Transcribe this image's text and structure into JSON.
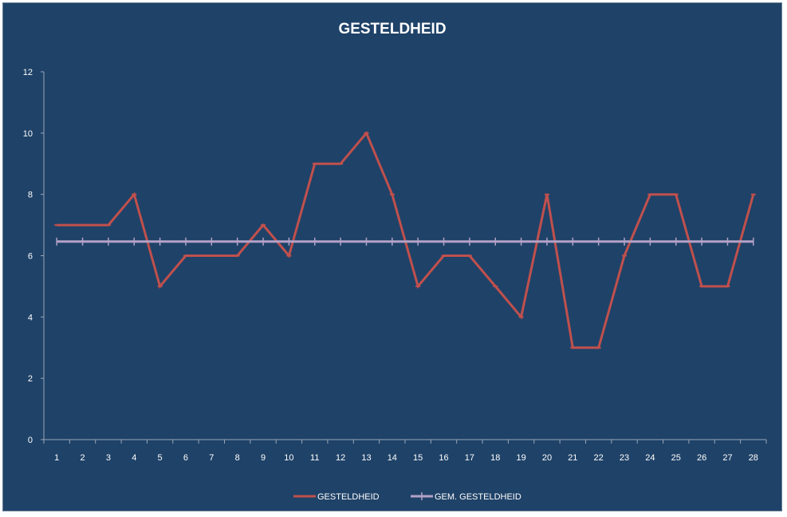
{
  "chart_data": {
    "type": "line",
    "title": "GESTELDHEID",
    "xlabel": "",
    "ylabel": "",
    "categories": [
      "1",
      "2",
      "3",
      "4",
      "5",
      "6",
      "7",
      "8",
      "9",
      "10",
      "11",
      "12",
      "13",
      "14",
      "15",
      "16",
      "17",
      "18",
      "19",
      "20",
      "21",
      "22",
      "23",
      "24",
      "25",
      "26",
      "27",
      "28"
    ],
    "ylim": [
      0,
      12
    ],
    "yticks": [
      "0",
      "2",
      "4",
      "6",
      "8",
      "10",
      "12"
    ],
    "grid": false,
    "legend_position": "bottom",
    "series": [
      {
        "name": "GESTELDHEID",
        "color": "#c0504d",
        "values": [
          7,
          7,
          7,
          8,
          5,
          6,
          6,
          6,
          7,
          6,
          9,
          9,
          10,
          8,
          5,
          6,
          6,
          5,
          4,
          8,
          3,
          3,
          6,
          8,
          8,
          5,
          5,
          8
        ]
      },
      {
        "name": "GEM. GESTELDHEID",
        "color": "#b3a2c7",
        "values": [
          6.46,
          6.46,
          6.46,
          6.46,
          6.46,
          6.46,
          6.46,
          6.46,
          6.46,
          6.46,
          6.46,
          6.46,
          6.46,
          6.46,
          6.46,
          6.46,
          6.46,
          6.46,
          6.46,
          6.46,
          6.46,
          6.46,
          6.46,
          6.46,
          6.46,
          6.46,
          6.46,
          6.46
        ]
      }
    ]
  }
}
